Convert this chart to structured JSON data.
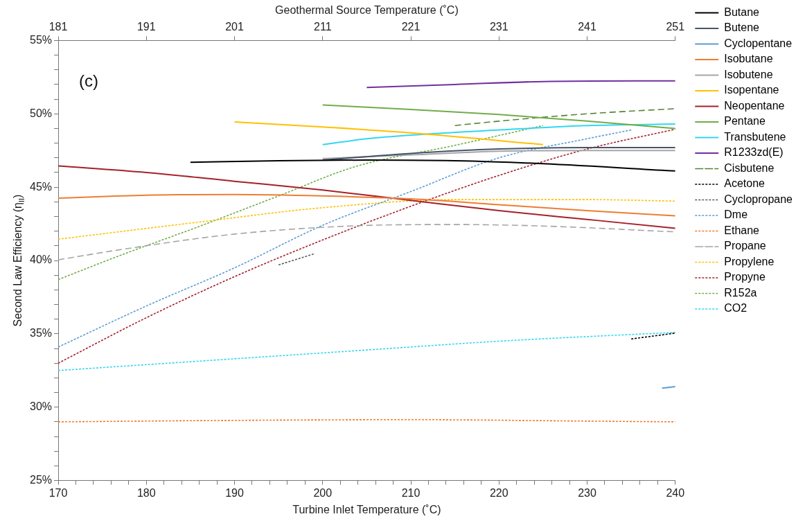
{
  "chart_data": {
    "type": "line",
    "xlabel": "Turbine Inlet Temperature (˚C)",
    "ylabel": "Second Law Efficiency (η$_{II}$)",
    "x2label": "Geothermal Source Temperature (˚C)",
    "annotations": [
      "(c)"
    ],
    "xlim": [
      170,
      240
    ],
    "xticks": [
      170,
      {
        "value": 172,
        "label": null
      },
      {
        "value": 174,
        "label": null
      },
      {
        "value": 176,
        "label": null
      },
      {
        "value": 178,
        "label": null
      },
      180,
      {
        "value": 182,
        "label": null
      },
      {
        "value": 184,
        "label": null
      },
      {
        "value": 186,
        "label": null
      },
      {
        "value": 188,
        "label": null
      },
      190,
      {
        "value": 192,
        "label": null
      },
      {
        "value": 194,
        "label": null
      },
      {
        "value": 196,
        "label": null
      },
      {
        "value": 198,
        "label": null
      },
      200,
      {
        "value": 202,
        "label": null
      },
      {
        "value": 204,
        "label": null
      },
      {
        "value": 206,
        "label": null
      },
      {
        "value": 208,
        "label": null
      },
      210,
      {
        "value": 212,
        "label": null
      },
      {
        "value": 214,
        "label": null
      },
      {
        "value": 216,
        "label": null
      },
      {
        "value": 218,
        "label": null
      },
      220,
      {
        "value": 222,
        "label": null
      },
      {
        "value": 224,
        "label": null
      },
      {
        "value": 226,
        "label": null
      },
      {
        "value": 228,
        "label": null
      },
      230,
      {
        "value": 232,
        "label": null
      },
      {
        "value": 234,
        "label": null
      },
      {
        "value": 236,
        "label": null
      },
      {
        "value": 238,
        "label": null
      },
      240
    ],
    "x2lim": [
      181,
      251
    ],
    "x2ticks": [
      181,
      191,
      201,
      211,
      221,
      231,
      241,
      251
    ],
    "ylim": [
      25,
      55
    ],
    "yticks": [
      {
        "value": 25,
        "label": "25%"
      },
      {
        "value": 26,
        "label": null
      },
      {
        "value": 27,
        "label": null
      },
      {
        "value": 28,
        "label": null
      },
      {
        "value": 29,
        "label": null
      },
      {
        "value": 30,
        "label": "30%"
      },
      {
        "value": 31,
        "label": null
      },
      {
        "value": 32,
        "label": null
      },
      {
        "value": 33,
        "label": null
      },
      {
        "value": 34,
        "label": null
      },
      {
        "value": 35,
        "label": "35%"
      },
      {
        "value": 36,
        "label": null
      },
      {
        "value": 37,
        "label": null
      },
      {
        "value": 38,
        "label": null
      },
      {
        "value": 39,
        "label": null
      },
      {
        "value": 40,
        "label": "40%"
      },
      {
        "value": 41,
        "label": null
      },
      {
        "value": 42,
        "label": null
      },
      {
        "value": 43,
        "label": null
      },
      {
        "value": 44,
        "label": null
      },
      {
        "value": 45,
        "label": "45%"
      },
      {
        "value": 46,
        "label": null
      },
      {
        "value": 47,
        "label": null
      },
      {
        "value": 48,
        "label": null
      },
      {
        "value": 49,
        "label": null
      },
      {
        "value": 50,
        "label": "50%"
      },
      {
        "value": 51,
        "label": null
      },
      {
        "value": 52,
        "label": null
      },
      {
        "value": 53,
        "label": null
      },
      {
        "value": 54,
        "label": null
      },
      {
        "value": 55,
        "label": "55%"
      }
    ],
    "grid": false,
    "legend": "right",
    "marker": "none",
    "series": [
      {
        "name": "Butane",
        "color": "#000000",
        "line_style": "solid",
        "x": [
          185,
          195,
          205,
          215,
          225,
          240
        ],
        "values": [
          46.7,
          46.8,
          46.85,
          46.8,
          46.6,
          46.1
        ]
      },
      {
        "name": "Butene",
        "color": "#44546a",
        "line_style": "solid",
        "x": [
          200,
          210,
          220,
          230,
          240
        ],
        "values": [
          46.85,
          47.3,
          47.6,
          47.7,
          47.7
        ]
      },
      {
        "name": "Cyclopentane",
        "color": "#5b9bd5",
        "line_style": "solid",
        "x": [
          238.5,
          240
        ],
        "values": [
          31.3,
          31.4
        ]
      },
      {
        "name": "Isobutane",
        "color": "#ed7d31",
        "line_style": "solid",
        "x": [
          170,
          180,
          190,
          200,
          210,
          220,
          230,
          240
        ],
        "values": [
          44.25,
          44.45,
          44.5,
          44.4,
          44.2,
          43.8,
          43.4,
          43.05
        ]
      },
      {
        "name": "Isobutene",
        "color": "#a5a5a5",
        "line_style": "solid",
        "x": [
          200,
          210,
          220,
          230,
          240
        ],
        "values": [
          46.95,
          47.2,
          47.45,
          47.5,
          47.5
        ]
      },
      {
        "name": "Isopentane",
        "color": "#ffc000",
        "line_style": "solid",
        "x": [
          190,
          200,
          210,
          225
        ],
        "values": [
          49.45,
          49.1,
          48.7,
          47.9
        ]
      },
      {
        "name": "Neopentane",
        "color": "#a5202a",
        "line_style": "solid",
        "x": [
          170,
          180,
          190,
          200,
          210,
          220,
          230,
          240
        ],
        "values": [
          46.45,
          46.0,
          45.4,
          44.8,
          44.1,
          43.4,
          42.8,
          42.2
        ]
      },
      {
        "name": "Pentane",
        "color": "#70ad47",
        "line_style": "solid",
        "x": [
          200,
          210,
          220,
          230,
          240
        ],
        "values": [
          50.6,
          50.3,
          49.95,
          49.5,
          49.0
        ]
      },
      {
        "name": "Transbutene",
        "color": "#33d6f0",
        "line_style": "solid",
        "x": [
          200,
          205,
          210,
          220,
          230,
          240
        ],
        "values": [
          47.9,
          48.3,
          48.55,
          48.9,
          49.2,
          49.3
        ]
      },
      {
        "name": "R1233zd(E)",
        "color": "#7030a0",
        "line_style": "solid",
        "x": [
          205,
          215,
          225,
          240
        ],
        "values": [
          51.8,
          52.0,
          52.2,
          52.25
        ]
      },
      {
        "name": "Cisbutene",
        "color": "#548235",
        "line_style": "dashed",
        "x": [
          215,
          220,
          230,
          240
        ],
        "values": [
          49.2,
          49.5,
          50.0,
          50.35
        ]
      },
      {
        "name": "Acetone",
        "color": "#000000",
        "line_style": "dotted",
        "x": [
          235,
          240
        ],
        "values": [
          34.65,
          35.05
        ]
      },
      {
        "name": "Cyclopropane",
        "color": "#595959",
        "line_style": "dotted",
        "x": [
          195,
          199
        ],
        "values": [
          39.7,
          40.45
        ]
      },
      {
        "name": "Dme",
        "color": "#5b9bd5",
        "line_style": "dotted",
        "x": [
          170,
          180,
          190,
          200,
          210,
          220,
          230,
          235
        ],
        "values": [
          34.1,
          36.9,
          39.5,
          42.4,
          44.7,
          47.0,
          48.3,
          48.9
        ]
      },
      {
        "name": "Ethane",
        "color": "#ed7d31",
        "line_style": "dotted",
        "x": [
          170,
          190,
          210,
          230,
          240
        ],
        "values": [
          29.0,
          29.1,
          29.15,
          29.05,
          29.0
        ]
      },
      {
        "name": "Propane",
        "color": "#a5a5a5",
        "line_style": "dashed",
        "x": [
          170,
          177.7,
          190,
          203,
          215,
          225,
          240
        ],
        "values": [
          40.05,
          40.8,
          41.8,
          42.35,
          42.45,
          42.35,
          41.95
        ]
      },
      {
        "name": "Propylene",
        "color": "#ffc000",
        "line_style": "dotted",
        "x": [
          170,
          185.7,
          200,
          215,
          230,
          240
        ],
        "values": [
          41.45,
          42.6,
          43.6,
          44.15,
          44.15,
          44.05
        ]
      },
      {
        "name": "Propyne",
        "color": "#a5202a",
        "line_style": "dotted",
        "x": [
          170,
          180,
          190,
          200,
          210,
          220,
          230,
          240
        ],
        "values": [
          33.0,
          36.1,
          38.9,
          41.4,
          43.7,
          45.8,
          47.6,
          48.95
        ]
      },
      {
        "name": "R152a",
        "color": "#70ad47",
        "line_style": "dotted",
        "x": [
          170,
          177.7,
          185,
          195,
          203.7,
          215,
          225
        ],
        "values": [
          38.7,
          40.5,
          42.1,
          44.4,
          46.4,
          47.85,
          49.2
        ]
      },
      {
        "name": "CO2",
        "color": "#33d6f0",
        "line_style": "dotted",
        "x": [
          170,
          185,
          205,
          220,
          240
        ],
        "values": [
          32.5,
          33.1,
          33.9,
          34.5,
          35.1
        ]
      }
    ]
  }
}
